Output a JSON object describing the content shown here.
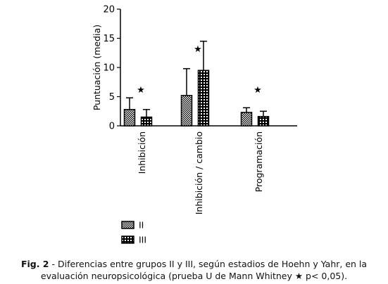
{
  "chart_data": {
    "type": "bar",
    "ylabel": "Puntuación (media)",
    "ylim": [
      0,
      20
    ],
    "yticks": [
      0,
      5,
      10,
      15,
      20
    ],
    "categories": [
      "Inhibición",
      "Inhibición / cambio",
      "Programación"
    ],
    "series": [
      {
        "name": "II",
        "values": [
          2.8,
          5.2,
          2.3
        ],
        "errors": [
          2.0,
          4.6,
          0.8
        ]
      },
      {
        "name": "III",
        "values": [
          1.5,
          9.5,
          1.6
        ],
        "errors": [
          1.3,
          5.0,
          0.9
        ]
      }
    ],
    "significance_marker": "★",
    "legend_position": "bottom-left",
    "grid": false
  },
  "caption": {
    "label": "Fig. 2",
    "line1": " - Diferencias entre grupos II y III, según estadios de Hoehn y Yahr, en la",
    "line2": "evaluación neuropsicológica (prueba U de Mann Whitney ★ p< 0,05)."
  }
}
